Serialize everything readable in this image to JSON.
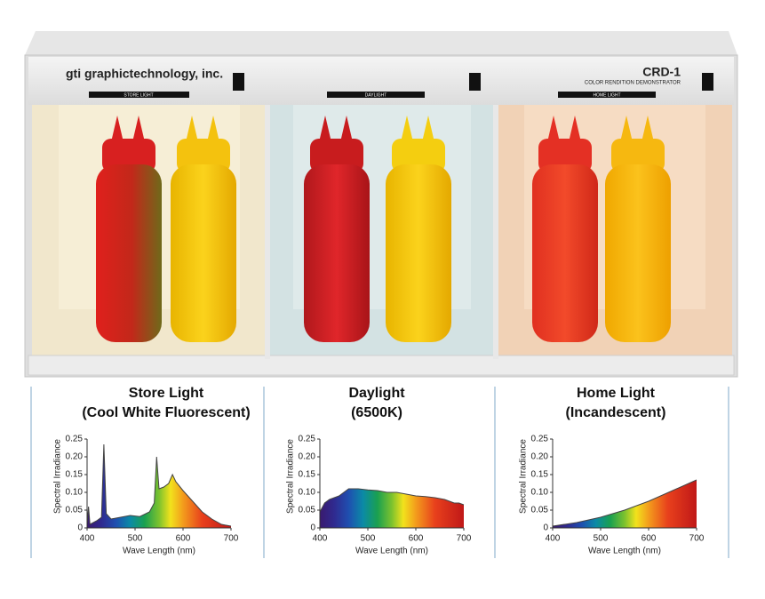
{
  "photo": {
    "brand": "gti graphictechnology, inc.",
    "model": "CRD-1",
    "model_subtitle": "COLOR RENDITION DEMONSTRATOR",
    "booth_labels": [
      "STORE LIGHT",
      "DAYLIGHT",
      "HOME LIGHT"
    ]
  },
  "chart_data": [
    {
      "type": "area",
      "title": "Store Light",
      "subtitle": "(Cool White Fluorescent)",
      "x_label": "Wave Length (nm)",
      "y_label": "Spectral Irradiance",
      "color": "#444444",
      "x": [
        400,
        403,
        406,
        420,
        430,
        435,
        440,
        450,
        470,
        490,
        510,
        530,
        540,
        545,
        550,
        560,
        570,
        578,
        585,
        600,
        620,
        640,
        660,
        680,
        700
      ],
      "values": [
        0.01,
        0.06,
        0.01,
        0.02,
        0.03,
        0.235,
        0.04,
        0.025,
        0.03,
        0.035,
        0.032,
        0.045,
        0.07,
        0.2,
        0.11,
        0.115,
        0.125,
        0.15,
        0.13,
        0.105,
        0.075,
        0.045,
        0.025,
        0.01,
        0.005
      ],
      "xlim": [
        400,
        700
      ],
      "xticks": [
        400,
        500,
        600,
        700
      ],
      "ylim": [
        0,
        0.25
      ],
      "yticks": [
        0,
        0.05,
        {
          "value": 0.1,
          "label": "0.10"
        },
        0.15,
        {
          "value": 0.2,
          "label": "0.20"
        },
        0.25
      ]
    },
    {
      "type": "area",
      "title": "Daylight",
      "subtitle": "(6500K)",
      "x_label": "Wave Length (nm)",
      "y_label": "Spectral Irradiance",
      "color": "#444444",
      "x": [
        400,
        410,
        420,
        440,
        460,
        480,
        500,
        520,
        540,
        560,
        580,
        600,
        620,
        640,
        660,
        680,
        690,
        700
      ],
      "values": [
        0.045,
        0.07,
        0.08,
        0.09,
        0.11,
        0.11,
        0.107,
        0.105,
        0.1,
        0.1,
        0.095,
        0.09,
        0.088,
        0.085,
        0.08,
        0.07,
        0.07,
        0.065
      ],
      "xlim": [
        400,
        700
      ],
      "xticks": [
        400,
        500,
        600,
        700
      ],
      "ylim": [
        0,
        0.25
      ],
      "yticks": [
        0,
        0.05,
        {
          "value": 0.1,
          "label": "0.10"
        },
        0.15,
        {
          "value": 0.2,
          "label": "0.20"
        },
        0.25
      ]
    },
    {
      "type": "area",
      "title": "Home Light",
      "subtitle": "(Incandescent)",
      "x_label": "Wave Length (nm)",
      "y_label": "Spectral Irradiance",
      "color": "#444444",
      "x": [
        400,
        450,
        500,
        550,
        600,
        650,
        700
      ],
      "values": [
        0.005,
        0.015,
        0.03,
        0.05,
        0.075,
        0.105,
        0.135
      ],
      "xlim": [
        400,
        700
      ],
      "xticks": [
        400,
        500,
        600,
        700
      ],
      "ylim": [
        0,
        0.25
      ],
      "yticks": [
        0,
        0.05,
        {
          "value": 0.1,
          "label": "0.10"
        },
        0.15,
        {
          "value": 0.2,
          "label": "0.20"
        },
        0.25
      ]
    }
  ]
}
